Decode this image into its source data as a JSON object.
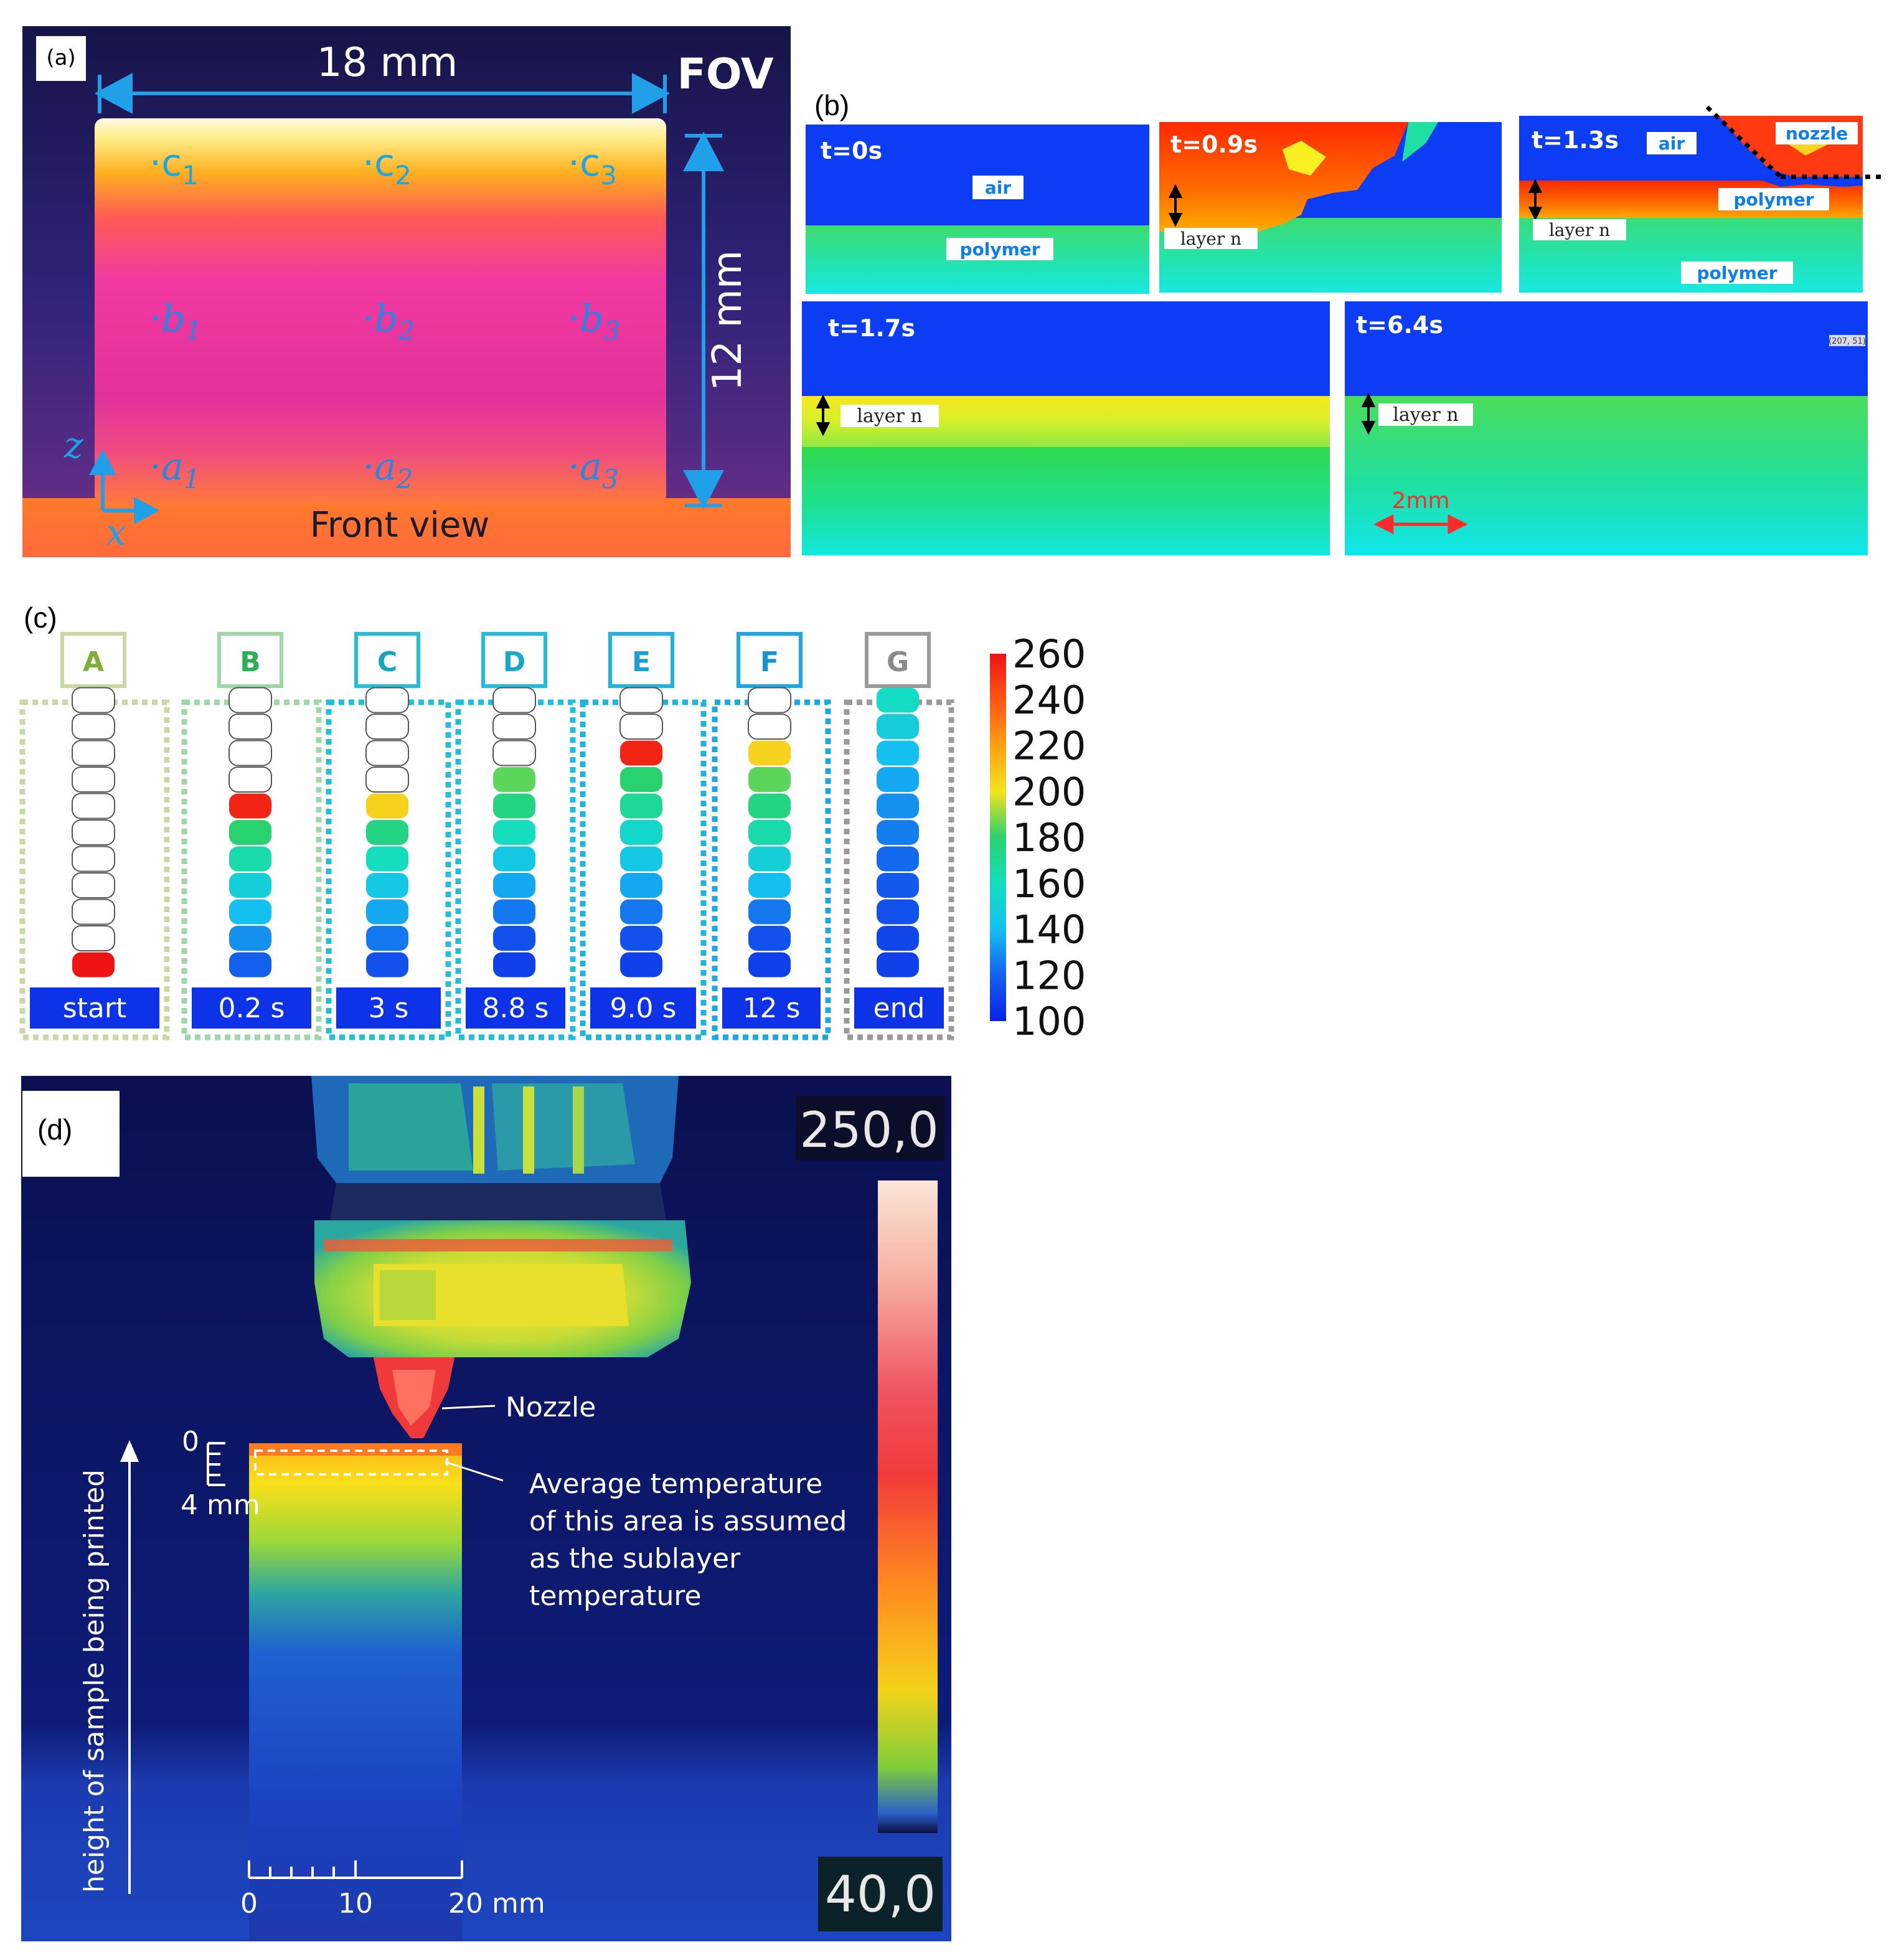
{
  "panel_a": {
    "label": "(a)",
    "width_label": "18 mm",
    "fov": "FOV",
    "height_label": "12 mm",
    "view": "Front view",
    "axis_z": "z",
    "axis_x": "x",
    "points": [
      {
        "letter": "c",
        "sub": "1"
      },
      {
        "letter": "c",
        "sub": "2"
      },
      {
        "letter": "c",
        "sub": "3"
      },
      {
        "letter": "b",
        "sub": "1"
      },
      {
        "letter": "b",
        "sub": "2"
      },
      {
        "letter": "b",
        "sub": "3"
      },
      {
        "letter": "a",
        "sub": "1"
      },
      {
        "letter": "a",
        "sub": "2"
      },
      {
        "letter": "a",
        "sub": "3"
      }
    ]
  },
  "panel_b": {
    "label": "(b)",
    "frames": [
      {
        "time": "t=0s",
        "tags": [
          "air",
          "polymer"
        ]
      },
      {
        "time": "t=0.9s",
        "tags": [
          "layer n"
        ]
      },
      {
        "time": "t=1.3s",
        "tags": [
          "air",
          "nozzle",
          "polymer",
          "layer n",
          "polymer"
        ]
      },
      {
        "time": "t=1.7s",
        "tags": [
          "layer n"
        ]
      },
      {
        "time": "t=6.4s",
        "tags": [
          "layer n"
        ]
      }
    ],
    "scale_label": "2mm",
    "corner_readout": "(207, 51)"
  },
  "panel_c": {
    "label": "(c)",
    "stages": [
      {
        "letter": "A",
        "time": "start",
        "frame_color": "#c9d9a6",
        "letter_color": "#7fae3a"
      },
      {
        "letter": "B",
        "time": "0.2 s",
        "frame_color": "#9fd8a8",
        "letter_color": "#2fae57"
      },
      {
        "letter": "C",
        "time": "3 s",
        "frame_color": "#21c0d4",
        "letter_color": "#14a6bd"
      },
      {
        "letter": "D",
        "time": "8.8 s",
        "frame_color": "#1fbede",
        "letter_color": "#1aa7cc"
      },
      {
        "letter": "E",
        "time": "9.0 s",
        "frame_color": "#1eb4e0",
        "letter_color": "#1a9fd4"
      },
      {
        "letter": "F",
        "time": "12 s",
        "frame_color": "#1aa8e6",
        "letter_color": "#1a92d8"
      },
      {
        "letter": "G",
        "time": "end",
        "frame_color": "#9a9a9a",
        "letter_color": "#8a8a8a"
      }
    ],
    "layer_temps": [
      [
        260,
        null,
        null,
        null,
        null,
        null,
        null,
        null,
        null,
        null,
        null
      ],
      [
        120,
        130,
        140,
        150,
        165,
        180,
        255,
        null,
        null,
        null,
        null
      ],
      [
        115,
        125,
        135,
        145,
        160,
        175,
        205,
        null,
        null,
        null,
        null
      ],
      [
        110,
        115,
        125,
        135,
        145,
        160,
        175,
        185,
        null,
        null,
        null
      ],
      [
        110,
        115,
        125,
        135,
        145,
        155,
        170,
        180,
        255,
        null,
        null
      ],
      [
        110,
        115,
        125,
        140,
        150,
        165,
        175,
        185,
        205,
        null,
        null
      ],
      [
        110,
        112,
        115,
        118,
        122,
        126,
        130,
        135,
        140,
        148,
        158
      ]
    ],
    "colorbar_ticks": [
      "260",
      "240",
      "220",
      "200",
      "180",
      "160",
      "140",
      "120",
      "100"
    ],
    "colorbar_range": [
      100,
      260
    ]
  },
  "panel_d": {
    "label": "(d)",
    "max_reading": "250,0",
    "min_reading": "40,0",
    "nozzle": "Nozzle",
    "annotation": [
      "Average temperature",
      "of this area is assumed",
      "as the sublayer",
      "temperature"
    ],
    "height_axis": "height of sample being printed",
    "depth_top": "0",
    "depth_bottom": "4 mm",
    "scale_ticks": [
      "0",
      "10",
      "20 mm"
    ]
  }
}
